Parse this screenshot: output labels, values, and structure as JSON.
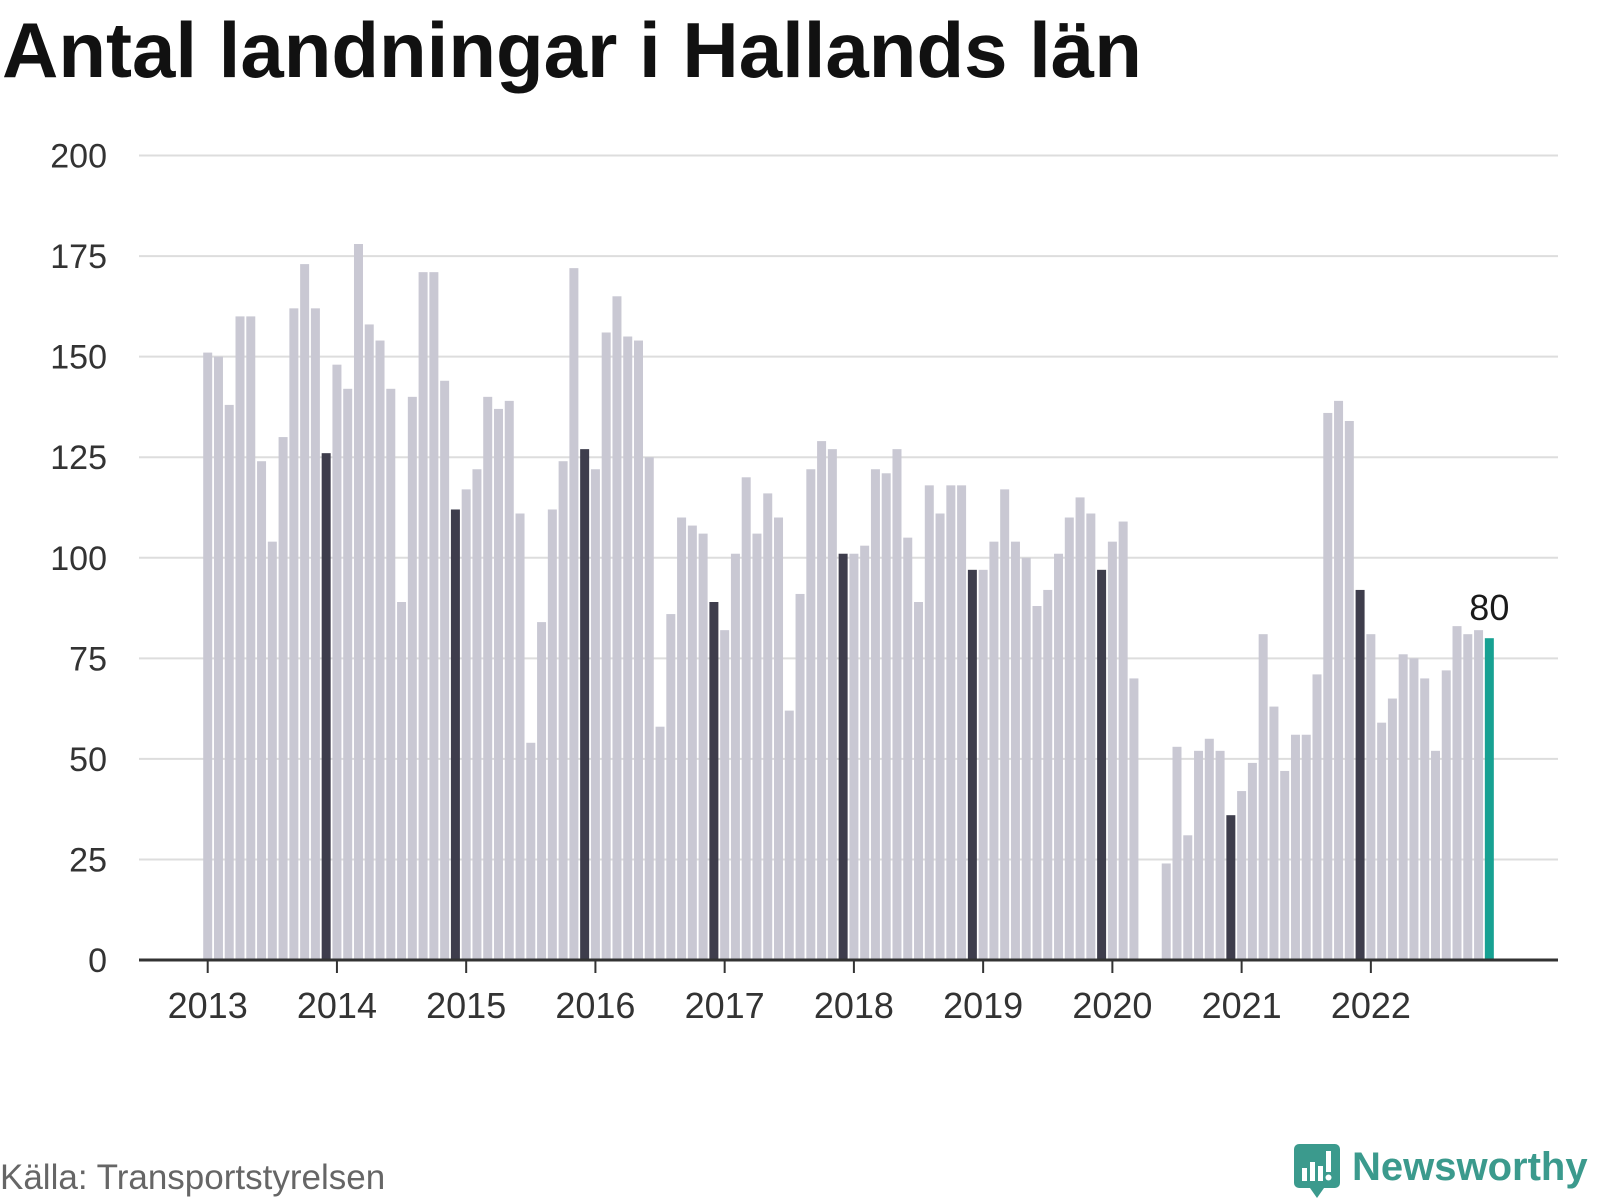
{
  "chart_data": {
    "type": "bar",
    "title": "Antal landningar i Hallands län",
    "xlabel": "",
    "ylabel": "",
    "ylim": [
      0,
      200
    ],
    "yticks": [
      0,
      25,
      50,
      75,
      100,
      125,
      150,
      175,
      200
    ],
    "xticks": [
      "2013",
      "2014",
      "2015",
      "2016",
      "2017",
      "2018",
      "2019",
      "2020",
      "2021",
      "2022"
    ],
    "grid": "horizontal",
    "legend": "none",
    "categories": [
      "2013-01",
      "2013-02",
      "2013-03",
      "2013-04",
      "2013-05",
      "2013-06",
      "2013-07",
      "2013-08",
      "2013-09",
      "2013-10",
      "2013-11",
      "2013-12",
      "2014-01",
      "2014-02",
      "2014-03",
      "2014-04",
      "2014-05",
      "2014-06",
      "2014-07",
      "2014-08",
      "2014-09",
      "2014-10",
      "2014-11",
      "2014-12",
      "2015-01",
      "2015-02",
      "2015-03",
      "2015-04",
      "2015-05",
      "2015-06",
      "2015-07",
      "2015-08",
      "2015-09",
      "2015-10",
      "2015-11",
      "2015-12",
      "2016-01",
      "2016-02",
      "2016-03",
      "2016-04",
      "2016-05",
      "2016-06",
      "2016-07",
      "2016-08",
      "2016-09",
      "2016-10",
      "2016-11",
      "2016-12",
      "2017-01",
      "2017-02",
      "2017-03",
      "2017-04",
      "2017-05",
      "2017-06",
      "2017-07",
      "2017-08",
      "2017-09",
      "2017-10",
      "2017-11",
      "2017-12",
      "2018-01",
      "2018-02",
      "2018-03",
      "2018-04",
      "2018-05",
      "2018-06",
      "2018-07",
      "2018-08",
      "2018-09",
      "2018-10",
      "2018-11",
      "2018-12",
      "2019-01",
      "2019-02",
      "2019-03",
      "2019-04",
      "2019-05",
      "2019-06",
      "2019-07",
      "2019-08",
      "2019-09",
      "2019-10",
      "2019-11",
      "2019-12",
      "2020-01",
      "2020-02",
      "2020-03",
      "2020-04",
      "2020-05",
      "2020-06",
      "2020-07",
      "2020-08",
      "2020-09",
      "2020-10",
      "2020-11",
      "2020-12",
      "2021-01",
      "2021-02",
      "2021-03",
      "2021-04",
      "2021-05",
      "2021-06",
      "2021-07",
      "2021-08",
      "2021-09",
      "2021-10",
      "2021-11",
      "2021-12",
      "2022-01",
      "2022-02",
      "2022-03",
      "2022-04",
      "2022-05",
      "2022-06",
      "2022-07",
      "2022-08",
      "2022-09",
      "2022-10",
      "2022-11",
      "2022-12"
    ],
    "values": [
      151,
      150,
      138,
      160,
      160,
      124,
      104,
      130,
      162,
      173,
      162,
      126,
      148,
      142,
      178,
      158,
      154,
      142,
      89,
      140,
      171,
      171,
      144,
      112,
      117,
      122,
      140,
      137,
      139,
      111,
      54,
      84,
      112,
      124,
      172,
      127,
      122,
      156,
      165,
      155,
      154,
      125,
      58,
      86,
      110,
      108,
      106,
      89,
      82,
      101,
      120,
      106,
      116,
      110,
      62,
      91,
      122,
      129,
      127,
      101,
      101,
      103,
      122,
      121,
      127,
      105,
      89,
      118,
      111,
      118,
      118,
      97,
      97,
      104,
      117,
      104,
      100,
      88,
      92,
      101,
      110,
      115,
      111,
      97,
      104,
      109,
      70,
      0,
      0,
      24,
      53,
      31,
      52,
      55,
      52,
      36,
      42,
      49,
      81,
      63,
      47,
      56,
      56,
      71,
      136,
      139,
      134,
      92,
      81,
      59,
      65,
      76,
      75,
      70,
      52,
      72,
      83,
      81,
      82,
      80
    ],
    "data_labels": [
      {
        "x": "2022-12",
        "text": "80"
      }
    ]
  },
  "source": "Källa: Transportstyrelsen",
  "brand": {
    "name": "Newsworthy",
    "icon": "newsworthy-logo-icon"
  },
  "colors": {
    "bar": "#c9c8d3",
    "bar_same_month": "#3e3d4c",
    "bar_latest": "#17a192",
    "grid": "#dddddd",
    "axis": "#333333",
    "tick_label": "#333333",
    "data_label": "#1a1a1a",
    "brand": "#3b9a8d"
  }
}
